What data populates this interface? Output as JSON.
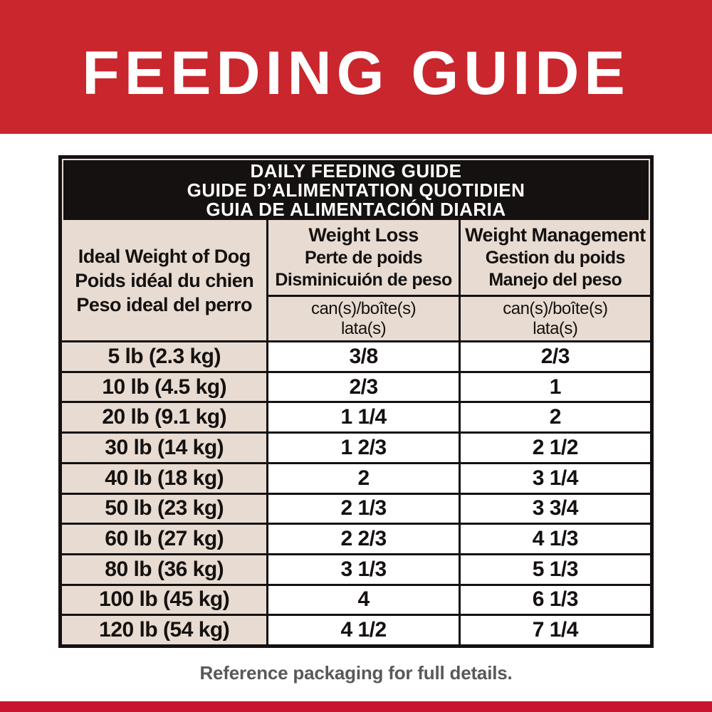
{
  "banner": {
    "title": "FEEDING GUIDE"
  },
  "table": {
    "title_lines": [
      "DAILY FEEDING GUIDE",
      "GUIDE D’ALIMENTATION QUOTIDIEN",
      "GUIA DE ALIMENTACIÓN DIARIA"
    ],
    "col_weight": {
      "line1": "Ideal Weight of Dog",
      "line2": "Poids idéal du chien",
      "line3": "Peso ideal del perro"
    },
    "col_loss": {
      "line1": "Weight Loss",
      "line2": "Perte de poids",
      "line3": "Disminicuión de peso",
      "unit1": "can(s)/boîte(s)",
      "unit2": "lata(s)"
    },
    "col_mgmt": {
      "line1": "Weight Management",
      "line2": "Gestion du poids",
      "line3": "Manejo del peso",
      "unit1": "can(s)/boîte(s)",
      "unit2": "lata(s)"
    },
    "rows": [
      {
        "weight": "5 lb (2.3 kg)",
        "loss": "3/8",
        "mgmt": "2/3"
      },
      {
        "weight": "10 lb (4.5 kg)",
        "loss": "2/3",
        "mgmt": "1"
      },
      {
        "weight": "20 lb (9.1 kg)",
        "loss": "1 1/4",
        "mgmt": "2"
      },
      {
        "weight": "30 lb (14 kg)",
        "loss": "1 2/3",
        "mgmt": "2 1/2"
      },
      {
        "weight": "40 lb (18 kg)",
        "loss": "2",
        "mgmt": "3 1/4"
      },
      {
        "weight": "50 lb (23 kg)",
        "loss": "2 1/3",
        "mgmt": "3 3/4"
      },
      {
        "weight": "60 lb (27 kg)",
        "loss": "2 2/3",
        "mgmt": "4 1/3"
      },
      {
        "weight": "80 lb (36 kg)",
        "loss": "3 1/3",
        "mgmt": "5 1/3"
      },
      {
        "weight": "100 lb (45 kg)",
        "loss": "4",
        "mgmt": "6 1/3"
      },
      {
        "weight": "120 lb (54 kg)",
        "loss": "4 1/2",
        "mgmt": "7 1/4"
      }
    ]
  },
  "footer": {
    "note": "Reference packaging for full details."
  },
  "colors": {
    "banner_red": "#C9262D",
    "strip_red": "#C8142F",
    "header_black": "#141110",
    "cell_beige": "#E8DCD2",
    "footer_gray": "#58595B"
  }
}
